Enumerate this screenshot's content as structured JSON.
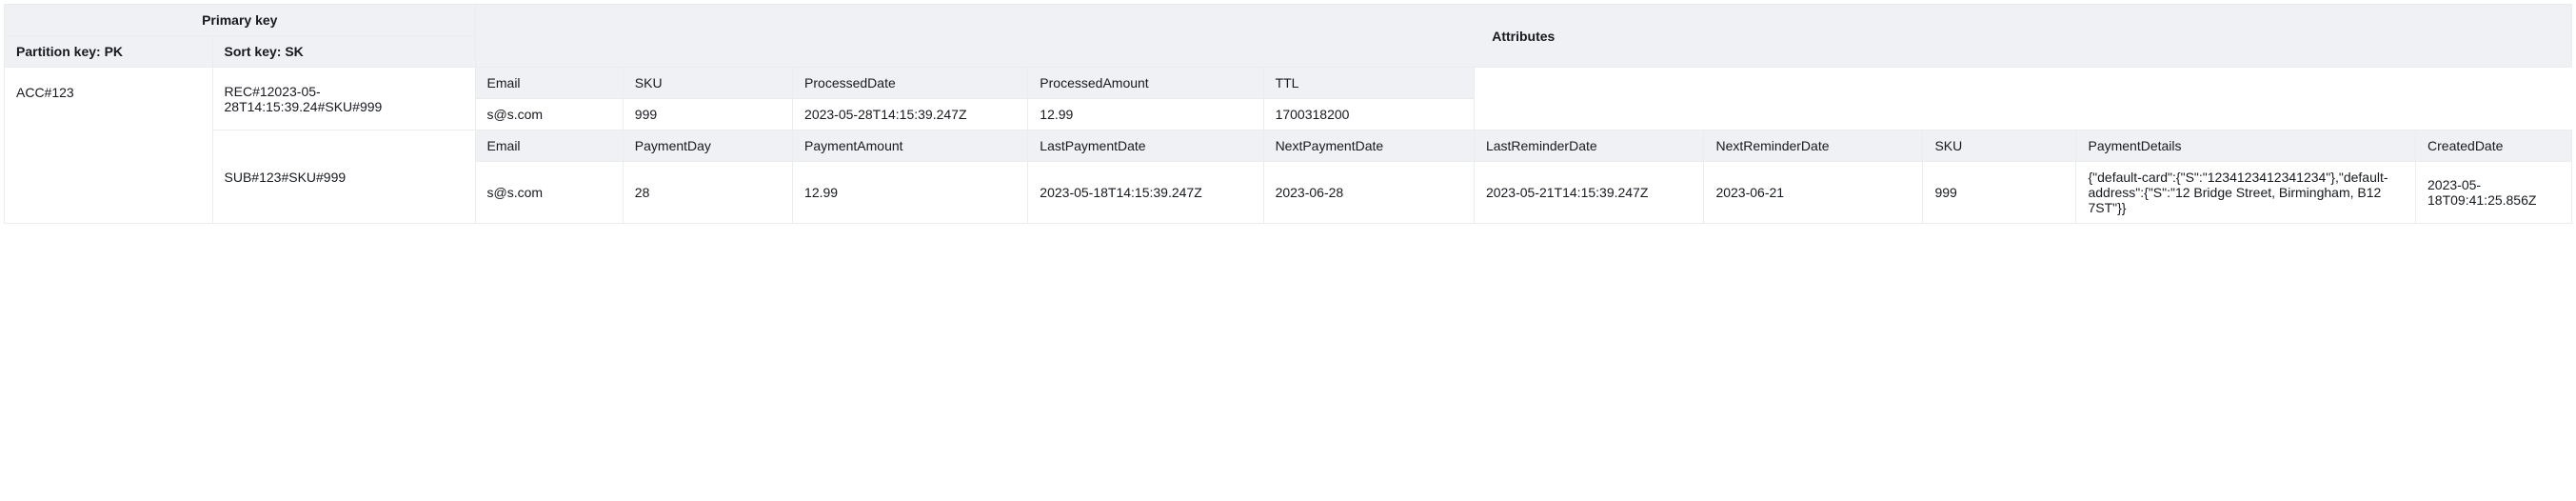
{
  "header": {
    "primary_key": "Primary key",
    "attributes": "Attributes",
    "partition_key": "Partition key: PK",
    "sort_key": "Sort key: SK"
  },
  "pk_value": "ACC#123",
  "row1": {
    "sk": "REC#12023-05-28T14:15:39.24#SKU#999",
    "cols": {
      "email_h": "Email",
      "sku_h": "SKU",
      "pdate_h": "ProcessedDate",
      "pamt_h": "ProcessedAmount",
      "ttl_h": "TTL"
    },
    "vals": {
      "email": "s@s.com",
      "sku": "999",
      "pdate": "2023-05-28T14:15:39.247Z",
      "pamt": "12.99",
      "ttl": "1700318200"
    }
  },
  "row2": {
    "sk": "SUB#123#SKU#999",
    "cols": {
      "email_h": "Email",
      "payday_h": "PaymentDay",
      "payamt_h": "PaymentAmount",
      "lastpay_h": "LastPaymentDate",
      "nextpay_h": "NextPaymentDate",
      "lastrem_h": "LastReminderDate",
      "nextrem_h": "NextReminderDate",
      "sku_h": "SKU",
      "paydet_h": "PaymentDetails",
      "created_h": "CreatedDate"
    },
    "vals": {
      "email": "s@s.com",
      "payday": "28",
      "payamt": "12.99",
      "lastpay": "2023-05-18T14:15:39.247Z",
      "nextpay": "2023-06-28",
      "lastrem": "2023-05-21T14:15:39.247Z",
      "nextrem": "2023-06-21",
      "sku": "999",
      "paydet": "{\"default-card\":{\"S\":\"1234123412341234\"},\"default-address\":{\"S\":\"12 Bridge Street, Birmingham, B12 7ST\"}}",
      "created": "2023-05-18T09:41:25.856Z"
    }
  }
}
